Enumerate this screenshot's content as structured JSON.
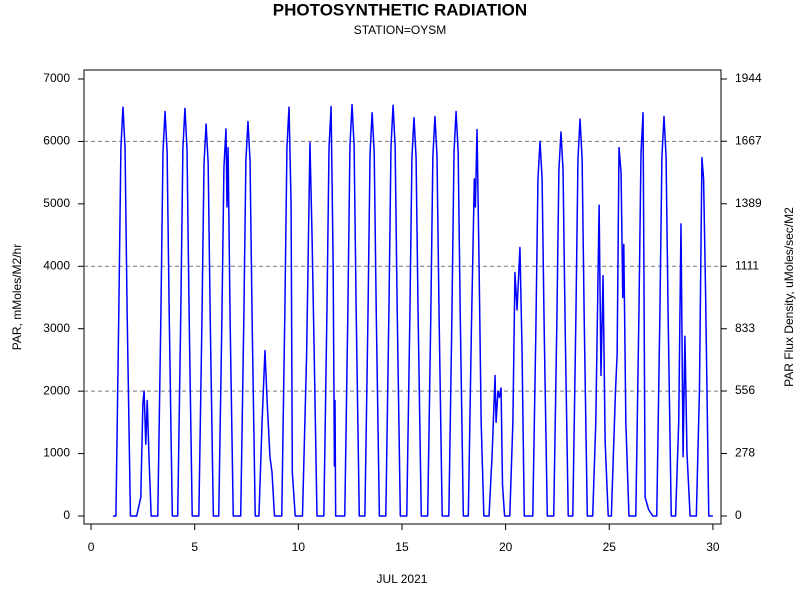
{
  "chart_data": {
    "type": "line",
    "title": "PHOTOSYNTHETIC RADIATION",
    "subtitle": "STATION=OYSM",
    "x_label": "JUL 2021",
    "y_label": "PAR, mMoles/M2/hr",
    "y2_label": "PAR Flux Density, uMoles/sec/M2",
    "xlim": [
      -0.34,
      30.39
    ],
    "xticks": [
      0,
      5,
      10,
      15,
      20,
      25,
      30
    ],
    "ylim": [
      -128,
      7144
    ],
    "yticks": [
      0,
      1000,
      2000,
      3000,
      4000,
      5000,
      6000,
      7000
    ],
    "y2lim": [
      -35.5,
      1984
    ],
    "y2ticks": [
      0,
      278,
      556,
      833,
      1111,
      1389,
      1667,
      1944
    ],
    "grid_y": [
      2000,
      4000,
      6000
    ],
    "series": [
      {
        "color": "#0000ff",
        "x": [
          1.06,
          1.2,
          1.34,
          1.44,
          1.54,
          1.64,
          1.74,
          1.9,
          2.2,
          2.4,
          2.5,
          2.56,
          2.64,
          2.71,
          2.8,
          2.9,
          3.22,
          3.37,
          3.47,
          3.57,
          3.67,
          3.77,
          3.92,
          4.18,
          4.33,
          4.43,
          4.53,
          4.63,
          4.73,
          4.88,
          5.2,
          5.35,
          5.45,
          5.55,
          5.65,
          5.75,
          5.9,
          6.16,
          6.31,
          6.41,
          6.51,
          6.56,
          6.61,
          6.71,
          6.86,
          7.22,
          7.37,
          7.47,
          7.57,
          7.67,
          7.77,
          7.92,
          8.1,
          8.25,
          8.39,
          8.5,
          8.63,
          8.73,
          8.85,
          9.2,
          9.35,
          9.45,
          9.55,
          9.65,
          9.71,
          9.85,
          10.2,
          10.4,
          10.56,
          10.66,
          10.76,
          10.9,
          11.23,
          11.38,
          11.48,
          11.58,
          11.68,
          11.74,
          11.77,
          11.8,
          12.24,
          12.39,
          12.49,
          12.59,
          12.69,
          12.79,
          12.94,
          13.21,
          13.36,
          13.46,
          13.56,
          13.66,
          13.76,
          13.91,
          14.22,
          14.37,
          14.47,
          14.57,
          14.67,
          14.77,
          14.92,
          15.23,
          15.38,
          15.48,
          15.58,
          15.68,
          15.78,
          15.93,
          16.24,
          16.39,
          16.49,
          16.59,
          16.69,
          16.79,
          16.94,
          17.26,
          17.41,
          17.51,
          17.61,
          17.71,
          17.81,
          17.96,
          18.2,
          18.35,
          18.49,
          18.54,
          18.62,
          18.72,
          18.82,
          18.95,
          19.2,
          19.35,
          19.49,
          19.54,
          19.63,
          19.7,
          19.78,
          19.85,
          19.95,
          20.2,
          20.35,
          20.45,
          20.55,
          20.69,
          20.79,
          20.9,
          21.31,
          21.46,
          21.56,
          21.66,
          21.76,
          21.86,
          22.01,
          22.32,
          22.47,
          22.57,
          22.67,
          22.77,
          22.87,
          23.02,
          23.24,
          23.39,
          23.49,
          23.59,
          23.69,
          23.79,
          23.94,
          24.2,
          24.35,
          24.51,
          24.6,
          24.7,
          24.8,
          24.95,
          25.1,
          25.3,
          25.38,
          25.47,
          25.57,
          25.65,
          25.7,
          25.8,
          25.95,
          26.28,
          26.43,
          26.53,
          26.63,
          26.73,
          26.9,
          27.1,
          27.29,
          27.44,
          27.54,
          27.64,
          27.74,
          27.84,
          27.99,
          28.2,
          28.35,
          28.46,
          28.56,
          28.65,
          28.75,
          28.9,
          29.2,
          29.35,
          29.47,
          29.55,
          29.65,
          29.8,
          30.0
        ],
        "values": [
          0,
          0,
          3280,
          5900,
          6550,
          5900,
          3280,
          0,
          0,
          300,
          1800,
          2000,
          1150,
          1850,
          900,
          0,
          0,
          3240,
          5830,
          6480,
          5830,
          3240,
          0,
          0,
          3270,
          5880,
          6530,
          5880,
          3270,
          0,
          0,
          3140,
          5650,
          6280,
          5650,
          3140,
          0,
          0,
          3100,
          5580,
          6200,
          4950,
          5900,
          3100,
          0,
          0,
          3160,
          5690,
          6320,
          5690,
          3160,
          0,
          0,
          1500,
          2650,
          1800,
          950,
          700,
          0,
          0,
          3280,
          5900,
          6550,
          5000,
          700,
          0,
          0,
          2600,
          5980,
          4500,
          2700,
          0,
          0,
          3280,
          5900,
          6560,
          4000,
          800,
          1850,
          0,
          0,
          3300,
          5930,
          6590,
          5930,
          3300,
          0,
          0,
          3230,
          5810,
          6460,
          5810,
          3230,
          0,
          0,
          3290,
          5920,
          6580,
          5920,
          3290,
          0,
          0,
          3190,
          5740,
          6380,
          5740,
          3190,
          0,
          0,
          3200,
          5760,
          6400,
          5760,
          3200,
          0,
          0,
          3240,
          5830,
          6480,
          5830,
          3240,
          0,
          0,
          3000,
          5400,
          4950,
          6190,
          4000,
          1500,
          0,
          0,
          1000,
          2250,
          1500,
          2000,
          1900,
          2050,
          500,
          0,
          0,
          1500,
          3900,
          3300,
          4300,
          2700,
          0,
          0,
          3000,
          5400,
          6000,
          5400,
          3000,
          0,
          0,
          3080,
          5540,
          6150,
          5540,
          3080,
          0,
          0,
          3180,
          5720,
          6360,
          5720,
          3180,
          0,
          0,
          1500,
          4980,
          2250,
          3850,
          1200,
          0,
          0,
          2000,
          2600,
          5900,
          5500,
          3500,
          4350,
          1500,
          0,
          0,
          3230,
          5810,
          6460,
          300,
          100,
          0,
          0,
          3200,
          5760,
          6400,
          5760,
          3200,
          0,
          0,
          1500,
          4680,
          950,
          2880,
          1000,
          0,
          0,
          2000,
          5740,
          5400,
          3500,
          0,
          0
        ]
      }
    ]
  }
}
